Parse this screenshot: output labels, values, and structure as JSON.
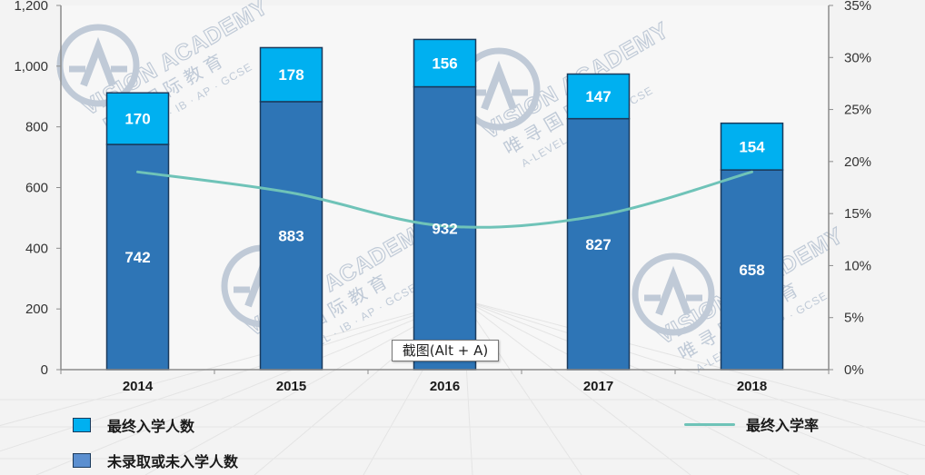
{
  "chart_data": {
    "type": "bar",
    "stacked": true,
    "categories": [
      "2014",
      "2015",
      "2016",
      "2017",
      "2018"
    ],
    "series": [
      {
        "name": "未录取或未入学人数",
        "values": [
          742,
          883,
          932,
          827,
          658
        ],
        "color": "#2e75b6",
        "axis": "left"
      },
      {
        "name": "最终入学人数",
        "values": [
          170,
          178,
          156,
          147,
          154
        ],
        "color": "#00b0f0",
        "axis": "left"
      },
      {
        "name": "最终入学率",
        "type": "line",
        "values": [
          19.0,
          17.0,
          13.8,
          14.8,
          19.0
        ],
        "color": "#6fc3b8",
        "axis": "right"
      }
    ],
    "y_left": {
      "ylim": [
        0,
        1200
      ],
      "ticks": [
        "0",
        "200",
        "400",
        "600",
        "800",
        "1,000",
        "1,200"
      ]
    },
    "y_right": {
      "ylim": [
        0,
        35
      ],
      "ticks": [
        "0%",
        "5%",
        "10%",
        "15%",
        "20%",
        "25%",
        "30%",
        "35%"
      ]
    },
    "grid": false,
    "legend": "bottom"
  },
  "legend": {
    "enrolled": "最终入学人数",
    "not_enrolled": "未录取或未入学人数",
    "rate": "最终入学率"
  },
  "tooltip": {
    "text": "截图(Alt + A)"
  },
  "watermark": {
    "brand": "VISION ACADEMY",
    "chinese": "唯 寻 国 际 教 育",
    "sub": "A-LEVEL · IB · AP · GCSE"
  }
}
